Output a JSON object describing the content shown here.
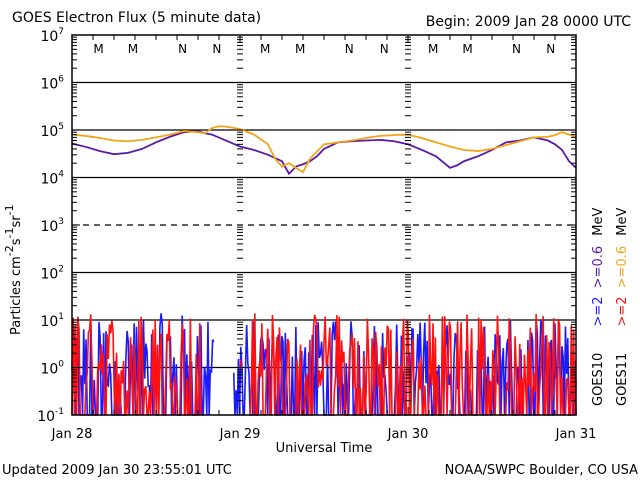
{
  "chart_data": {
    "type": "line",
    "title": "GOES Electron Flux (5 minute data)",
    "begin_label": "Begin: 2009 Jan 28 0000 UTC",
    "xlabel": "Universal Time",
    "ylabel": "Particles cm-2s-1sr-1",
    "ylabel_parts": {
      "base": "Particles cm",
      "e1": "-2",
      "s": "s",
      "e2": "-1",
      "sr": "sr",
      "e3": "-1"
    },
    "y_scale": "log",
    "ylim": [
      0.1,
      10000000
    ],
    "y_ticks": [
      {
        "base": "10",
        "exp": "7",
        "value": 10000000
      },
      {
        "base": "10",
        "exp": "6",
        "value": 1000000
      },
      {
        "base": "10",
        "exp": "5",
        "value": 100000
      },
      {
        "base": "10",
        "exp": "4",
        "value": 10000
      },
      {
        "base": "10",
        "exp": "3",
        "value": 1000
      },
      {
        "base": "10",
        "exp": "2",
        "value": 100
      },
      {
        "base": "10",
        "exp": "1",
        "value": 10
      },
      {
        "base": "10",
        "exp": "0",
        "value": 1
      },
      {
        "base": "10",
        "exp": "-1",
        "value": 0.1
      }
    ],
    "grid": {
      "solid": [
        1000000,
        100000,
        10000,
        100,
        10,
        1
      ],
      "dashed": [
        1000
      ]
    },
    "xlim_hours": [
      0,
      72
    ],
    "x_ticks": [
      {
        "label": "Jan 28",
        "hour": 0
      },
      {
        "label": "Jan 29",
        "hour": 24
      },
      {
        "label": "Jan 30",
        "hour": 48
      },
      {
        "label": "Jan 31",
        "hour": 72
      }
    ],
    "markers": [
      {
        "label": "M",
        "hour": 3.8,
        "color": "#1a1aff"
      },
      {
        "label": "M",
        "hour": 8.7,
        "color": "#e81010"
      },
      {
        "label": "N",
        "hour": 15.8,
        "color": "#1a1aff"
      },
      {
        "label": "N",
        "hour": 20.7,
        "color": "#e81010"
      },
      {
        "label": "M",
        "hour": 27.6,
        "color": "#1a1aff"
      },
      {
        "label": "M",
        "hour": 32.6,
        "color": "#e81010"
      },
      {
        "label": "N",
        "hour": 39.6,
        "color": "#1a1aff"
      },
      {
        "label": "N",
        "hour": 44.6,
        "color": "#e81010"
      },
      {
        "label": "M",
        "hour": 51.6,
        "color": "#1a1aff"
      },
      {
        "label": "M",
        "hour": 56.5,
        "color": "#e81010"
      },
      {
        "label": "N",
        "hour": 63.5,
        "color": "#1a1aff"
      },
      {
        "label": "N",
        "hour": 68.4,
        "color": "#e81010"
      }
    ],
    "series": [
      {
        "name": "GOES10 >=0.6 MeV",
        "color": "#5b1aa6",
        "hours": [
          0,
          2,
          4,
          6,
          8,
          10,
          12,
          14,
          16,
          18,
          19,
          20,
          22,
          24,
          26,
          28,
          30,
          31,
          32,
          33,
          34,
          35,
          36,
          38,
          40,
          42,
          44,
          46,
          48,
          50,
          52,
          54,
          55,
          56,
          58,
          60,
          62,
          64,
          66,
          68,
          69,
          70,
          71,
          72
        ],
        "values": [
          52000,
          44000,
          36000,
          31000,
          33000,
          40000,
          55000,
          72000,
          90000,
          95000,
          85000,
          80000,
          60000,
          45000,
          38000,
          30000,
          22000,
          12000,
          17000,
          19000,
          22000,
          28000,
          40000,
          55000,
          58000,
          60000,
          62000,
          58000,
          50000,
          38000,
          28000,
          16000,
          18000,
          22000,
          28000,
          38000,
          55000,
          60000,
          70000,
          60000,
          50000,
          38000,
          22000,
          16000
        ]
      },
      {
        "name": "GOES11 >=0.6 MeV",
        "color": "#f2a418",
        "hours": [
          0,
          2,
          4,
          6,
          8,
          10,
          12,
          14,
          16,
          18,
          19,
          20,
          21,
          22,
          24,
          26,
          28,
          29,
          30,
          31,
          32,
          33,
          34,
          36,
          38,
          40,
          42,
          44,
          46,
          48,
          50,
          52,
          54,
          56,
          58,
          60,
          62,
          64,
          66,
          68,
          69,
          70,
          71,
          72
        ],
        "values": [
          80000,
          75000,
          68000,
          60000,
          58000,
          62000,
          70000,
          80000,
          95000,
          90000,
          85000,
          110000,
          120000,
          118000,
          105000,
          80000,
          50000,
          25000,
          17000,
          20000,
          16000,
          13000,
          25000,
          50000,
          55000,
          60000,
          68000,
          75000,
          78000,
          80000,
          68000,
          55000,
          45000,
          38000,
          36000,
          40000,
          48000,
          58000,
          70000,
          72000,
          78000,
          90000,
          80000,
          72000
        ]
      },
      {
        "name": "GOES10 >=2 MeV",
        "color": "#1a1aff",
        "noise": true,
        "ymin_typ": 0.1,
        "ymax_typ": 10
      },
      {
        "name": "GOES11 >=2 MeV",
        "color": "#ff1010",
        "noise": true,
        "ymin_typ": 0.1,
        "ymax_typ": 15
      }
    ],
    "legend": {
      "placement": "right",
      "rows": [
        {
          "sat": "GOES10",
          "low": ">=2",
          "high": ">=0.6",
          "unit": "MeV",
          "low_color": "#1a1aff",
          "high_color": "#5b1aa6"
        },
        {
          "sat": "GOES11",
          "low": ">=2",
          "high": ">=0.6",
          "unit": "MeV",
          "low_color": "#ff1010",
          "high_color": "#f2a418"
        }
      ]
    }
  },
  "footer": {
    "updated": "Updated 2009 Jan 30 23:55:01 UTC",
    "credit": "NOAA/SWPC Boulder, CO USA"
  }
}
